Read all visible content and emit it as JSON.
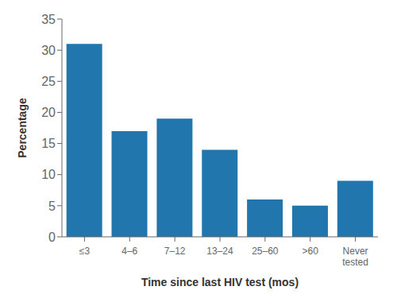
{
  "chart_data": {
    "type": "bar",
    "categories": [
      "≤3",
      "4–6",
      "7–12",
      "13–24",
      "25–60",
      ">60",
      "Never\ntested"
    ],
    "values": [
      31,
      17,
      19,
      14,
      6,
      5,
      9
    ],
    "color": "#2176ae",
    "xlabel": "Time since last HIV test (mos)",
    "ylabel": "Percentage",
    "ylim": [
      0,
      35
    ],
    "yticks": [
      0,
      5,
      10,
      15,
      20,
      25,
      30,
      35
    ],
    "grid": false
  }
}
